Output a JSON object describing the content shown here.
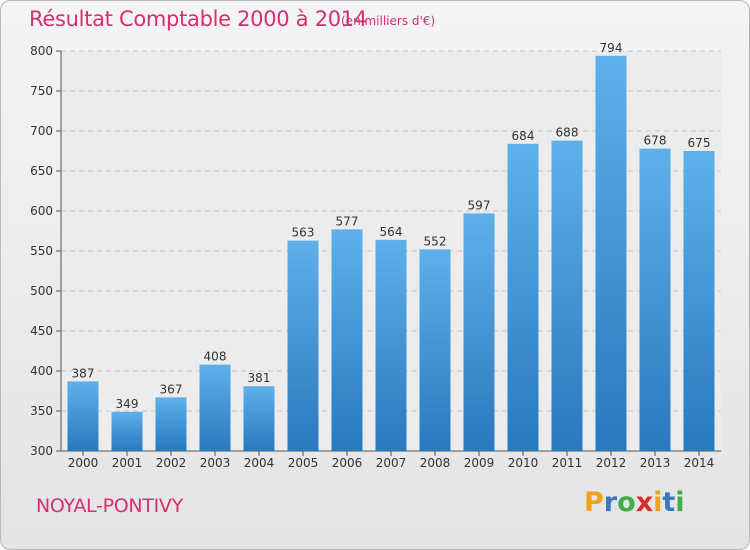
{
  "chart_data": {
    "type": "bar",
    "title": "Résultat Comptable 2000 à 2014",
    "subtitle": "(en milliers d'€)",
    "xlabel": "",
    "ylabel": "",
    "categories": [
      "2000",
      "2001",
      "2002",
      "2003",
      "2004",
      "2005",
      "2006",
      "2007",
      "2008",
      "2009",
      "2010",
      "2011",
      "2012",
      "2013",
      "2014"
    ],
    "values": [
      387,
      349,
      367,
      408,
      381,
      563,
      577,
      564,
      552,
      597,
      684,
      688,
      794,
      678,
      675
    ],
    "ylim": [
      300,
      800
    ],
    "yticks": [
      300,
      350,
      400,
      450,
      500,
      550,
      600,
      650,
      700,
      750,
      800
    ],
    "grid": true,
    "bar_color": "#3a8fd6"
  },
  "footer": {
    "place": "NOYAL-PONTIVY",
    "logo": [
      "P",
      "r",
      "o",
      "x",
      "i",
      "t",
      "i"
    ]
  },
  "colors": {
    "title": "#d62e72",
    "logo": [
      "#f0a21c",
      "#3b78c4",
      "#3fae49",
      "#d62e2e",
      "#f0a21c",
      "#3b78c4",
      "#3fae49"
    ]
  }
}
